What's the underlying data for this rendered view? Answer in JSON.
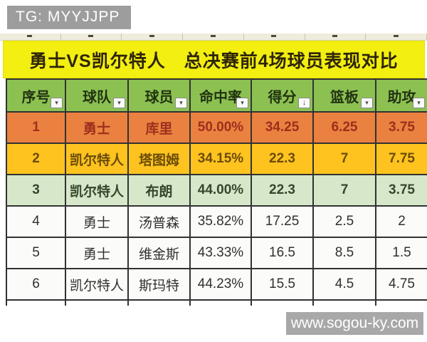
{
  "badge": {
    "text": "TG: MYYJJPP"
  },
  "title": {
    "text": "勇士VS凯尔特人　总决赛前4场球员表现对比"
  },
  "icons": {
    "filter": "▾",
    "sort_desc": "↓"
  },
  "table": {
    "headers": [
      "序号",
      "球队",
      "球员",
      "命中率",
      "得分",
      "篮板",
      "助攻"
    ],
    "sorted_column": "得分",
    "sort_direction": "descending",
    "rows": [
      {
        "no": "1",
        "team": "勇士",
        "player": "库里",
        "fg_pct": "50.00%",
        "points": "34.25",
        "rebounds": "6.25",
        "assists": "3.75"
      },
      {
        "no": "2",
        "team": "凯尔特人",
        "player": "塔图姆",
        "fg_pct": "34.15%",
        "points": "22.3",
        "rebounds": "7",
        "assists": "7.75"
      },
      {
        "no": "3",
        "team": "凯尔特人",
        "player": "布朗",
        "fg_pct": "44.00%",
        "points": "22.3",
        "rebounds": "7",
        "assists": "3.75"
      },
      {
        "no": "4",
        "team": "勇士",
        "player": "汤普森",
        "fg_pct": "35.82%",
        "points": "17.25",
        "rebounds": "2.5",
        "assists": "2"
      },
      {
        "no": "5",
        "team": "勇士",
        "player": "维金斯",
        "fg_pct": "43.33%",
        "points": "16.5",
        "rebounds": "8.5",
        "assists": "1.5"
      },
      {
        "no": "6",
        "team": "凯尔特人",
        "player": "斯玛特",
        "fg_pct": "44.23%",
        "points": "15.5",
        "rebounds": "4.5",
        "assists": "4.75"
      }
    ]
  },
  "watermark": {
    "text": "www.sogou-ky.com"
  },
  "colors": {
    "title_bg": "#f2ef11",
    "header_bg": "#8cc152",
    "row1_bg": "#ea8140",
    "row1_text": "#9e2e1d",
    "row2_bg": "#ffc320",
    "row2_text": "#6b4c08",
    "row3_bg": "#d6e8c9",
    "badge_bg": "#9d9d9d",
    "watermark_bg": "#a8a8a8",
    "border": "#323232"
  }
}
